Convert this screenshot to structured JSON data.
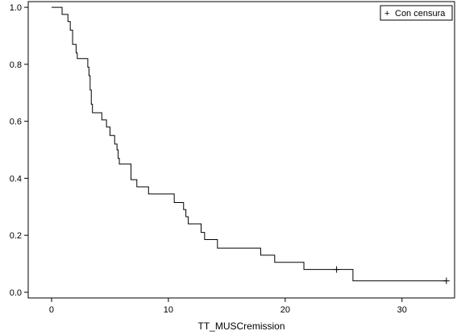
{
  "chart_data": {
    "type": "line",
    "title": "",
    "xlabel": "TT_MUSCremission",
    "ylabel": "",
    "xlim": [
      -2,
      34.5
    ],
    "ylim": [
      -0.02,
      1.02
    ],
    "x_ticks": [
      0,
      10,
      20,
      30
    ],
    "y_ticks": [
      0.0,
      0.2,
      0.4,
      0.6,
      0.8,
      1.0
    ],
    "x_tick_labels": [
      "0",
      "10",
      "20",
      "30"
    ],
    "y_tick_labels": [
      "0.0",
      "0.2",
      "0.4",
      "0.6",
      "0.8",
      "1.0"
    ],
    "grid": false,
    "legend": {
      "placement": "top-right",
      "marker": "+",
      "label": "Con censura"
    },
    "series": [
      {
        "step": "post",
        "x": [
          0,
          0.9,
          1.4,
          1.6,
          1.8,
          2.1,
          2.2,
          2.4,
          3.1,
          3.2,
          3.3,
          3.4,
          3.5,
          3.6,
          4.3,
          4.7,
          5.0,
          5.4,
          5.6,
          5.7,
          5.8,
          6.0,
          6.8,
          7.3,
          8.3,
          10.5,
          11.3,
          11.5,
          11.7,
          12.8,
          13.1,
          14.2,
          17.9,
          19.1,
          21.6,
          25.8,
          33.8
        ],
        "y": [
          1.0,
          0.975,
          0.95,
          0.92,
          0.87,
          0.84,
          0.82,
          0.82,
          0.79,
          0.76,
          0.71,
          0.66,
          0.63,
          0.63,
          0.605,
          0.58,
          0.55,
          0.52,
          0.5,
          0.47,
          0.45,
          0.45,
          0.395,
          0.37,
          0.345,
          0.315,
          0.29,
          0.265,
          0.24,
          0.21,
          0.185,
          0.155,
          0.13,
          0.105,
          0.08,
          0.04,
          0.04
        ]
      }
    ],
    "censored": [
      {
        "x": 24.4,
        "y": 0.08
      },
      {
        "x": 33.8,
        "y": 0.04
      }
    ]
  }
}
